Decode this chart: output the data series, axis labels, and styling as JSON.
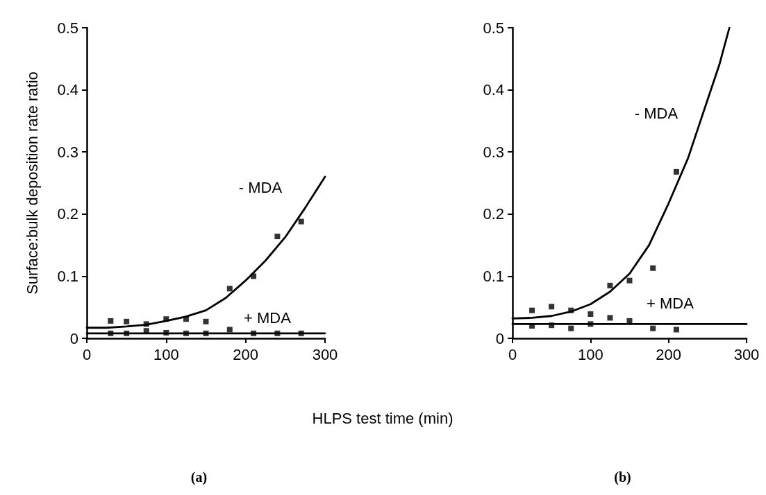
{
  "chart_data": [
    {
      "type": "scatter",
      "ylabel": "Surface:bulk deposition rate ratio",
      "xlabel": "HLPS test time (min)",
      "xlim": [
        0,
        300
      ],
      "xticks": [
        0,
        100,
        200,
        300
      ],
      "ylim": [
        0,
        0.5
      ],
      "yticks": [
        0,
        0.1,
        0.2,
        0.3,
        0.4,
        0.5
      ],
      "grid": false,
      "marker": "square",
      "series": [
        {
          "color": "#000000",
          "x": [
            30,
            50,
            75,
            100,
            125,
            150,
            180,
            210,
            240,
            270
          ],
          "values": [
            0.028,
            0.027,
            0.023,
            0.031,
            0.031,
            0.027,
            0.08,
            0.1,
            0.164,
            0.188
          ]
        },
        {
          "color": "#000000",
          "x": [
            30,
            50,
            75,
            100,
            125,
            150,
            180,
            210,
            240,
            270
          ],
          "values": [
            0.008,
            0.008,
            0.012,
            0.009,
            0.008,
            0.008,
            0.014,
            0.008,
            0.008,
            0.008
          ]
        },
        {
          "type": "line",
          "name": "- MDA",
          "color": "#000000",
          "line_style": "solid",
          "marker": "none",
          "x": [
            0,
            25,
            50,
            75,
            100,
            125,
            150,
            175,
            200,
            225,
            250,
            275,
            300
          ],
          "values": [
            0.017,
            0.017,
            0.019,
            0.022,
            0.028,
            0.035,
            0.045,
            0.065,
            0.093,
            0.125,
            0.163,
            0.21,
            0.26
          ]
        },
        {
          "type": "line",
          "name": "+ MDA",
          "color": "#000000",
          "line_style": "solid",
          "marker": "none",
          "x": [
            0,
            300
          ],
          "values": [
            0.008,
            0.008
          ]
        }
      ],
      "annotations": [
        "(a)"
      ]
    },
    {
      "type": "scatter",
      "xlim": [
        0,
        300
      ],
      "xticks": [
        0,
        100,
        200,
        300
      ],
      "ylim": [
        0,
        0.5
      ],
      "yticks": [
        0,
        0.1,
        0.2,
        0.3,
        0.4,
        0.5
      ],
      "grid": false,
      "marker": "square",
      "series": [
        {
          "color": "#000000",
          "x": [
            25,
            50,
            75,
            100,
            125,
            150,
            180,
            210
          ],
          "values": [
            0.045,
            0.051,
            0.045,
            0.039,
            0.085,
            0.093,
            0.113,
            0.268
          ]
        },
        {
          "color": "#000000",
          "x": [
            25,
            50,
            75,
            100,
            125,
            150,
            180,
            210
          ],
          "values": [
            0.02,
            0.021,
            0.016,
            0.023,
            0.033,
            0.028,
            0.016,
            0.014
          ]
        },
        {
          "type": "line",
          "name": "- MDA",
          "color": "#000000",
          "line_style": "solid",
          "marker": "none",
          "x": [
            0,
            25,
            50,
            75,
            100,
            125,
            150,
            175,
            200,
            225,
            250,
            265,
            278
          ],
          "values": [
            0.032,
            0.033,
            0.036,
            0.043,
            0.055,
            0.075,
            0.104,
            0.15,
            0.217,
            0.29,
            0.384,
            0.44,
            0.5
          ]
        },
        {
          "type": "line",
          "name": "+ MDA",
          "color": "#000000",
          "line_style": "solid",
          "marker": "none",
          "x": [
            0,
            300
          ],
          "values": [
            0.023,
            0.023
          ]
        }
      ],
      "annotations": [
        "(b)"
      ]
    }
  ]
}
